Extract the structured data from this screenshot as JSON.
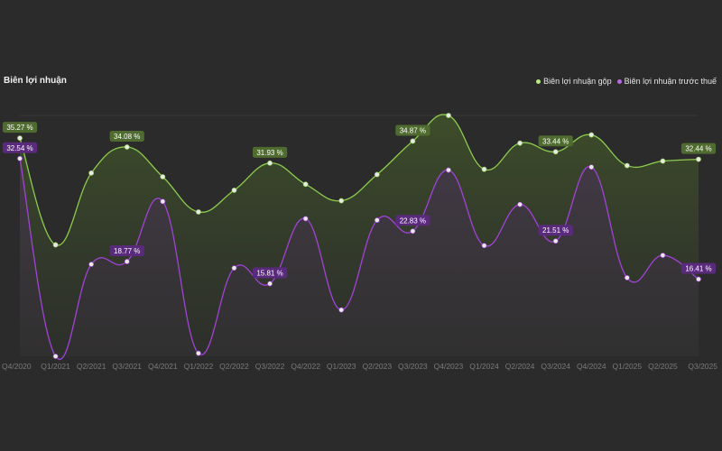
{
  "chart_data": {
    "type": "line",
    "title": "Biên lợi nhuận",
    "categories": [
      "Q4/2020",
      "Q1/2021",
      "Q2/2021",
      "Q3/2021",
      "Q4/2021",
      "Q1/2022",
      "Q2/2022",
      "Q3/2022",
      "Q4/2022",
      "Q1/2023",
      "Q2/2023",
      "Q3/2023",
      "Q4/2023",
      "Q1/2024",
      "Q2/2024",
      "Q3/2024",
      "Q4/2024",
      "Q1/2025",
      "Q2/2025",
      "Q3/2025"
    ],
    "ylim": [
      6.1,
      38.3
    ],
    "legend_position": "top-right",
    "series": [
      {
        "name": "Biên lợi nhuận gộp",
        "color": "#8dcc4e",
        "label_bg": "#4f6b2f",
        "values": [
          35.27,
          21.0,
          30.6,
          34.08,
          30.1,
          25.4,
          28.3,
          31.93,
          29.1,
          26.9,
          30.4,
          34.87,
          38.3,
          31.1,
          34.6,
          33.44,
          35.7,
          31.6,
          32.2,
          32.44
        ],
        "labels": {
          "0": "35.27 %",
          "3": "34.08 %",
          "7": "31.93 %",
          "11": "34.87 %",
          "15": "33.44 %",
          "19": "32.44 %"
        }
      },
      {
        "name": "Biên lợi nhuận trước thuế",
        "color": "#a043d6",
        "label_bg": "#5a2a7d",
        "values": [
          32.54,
          6.1,
          18.4,
          18.77,
          26.8,
          6.5,
          17.9,
          15.81,
          24.5,
          12.3,
          24.3,
          22.83,
          31.0,
          20.9,
          26.4,
          21.51,
          31.4,
          16.6,
          19.6,
          16.41
        ],
        "labels": {
          "0": "32.54 %",
          "3": "18.77 %",
          "7": "15.81 %",
          "11": "22.83 %",
          "15": "21.51 %",
          "19": "16.41 %"
        }
      }
    ]
  }
}
